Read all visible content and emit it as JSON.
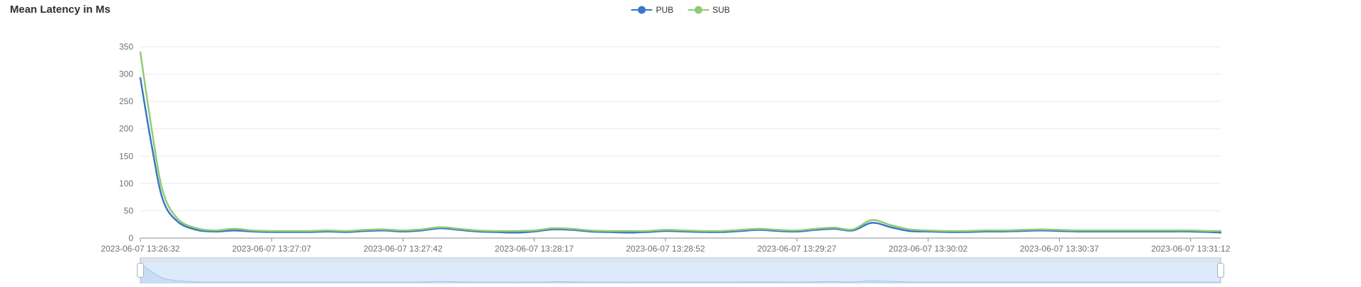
{
  "title": "Mean Latency in Ms",
  "legend": {
    "items": [
      {
        "label": "PUB",
        "color": "#3c76c6"
      },
      {
        "label": "SUB",
        "color": "#8ecb74"
      }
    ]
  },
  "chart_data": {
    "type": "line",
    "title": "Mean Latency in Ms",
    "xlabel": "",
    "ylabel": "",
    "x_axis": {
      "type": "time",
      "range_seconds": [
        0,
        288
      ],
      "tick_seconds": [
        0,
        35,
        70,
        105,
        140,
        175,
        210,
        245,
        280
      ],
      "tick_labels": [
        "2023-06-07 13:26:32",
        "2023-06-07 13:27:07",
        "2023-06-07 13:27:42",
        "2023-06-07 13:28:17",
        "2023-06-07 13:28:52",
        "2023-06-07 13:29:27",
        "2023-06-07 13:30:02",
        "2023-06-07 13:30:37",
        "2023-06-07 13:31:12"
      ]
    },
    "y_axis": {
      "ticks": [
        0,
        50,
        100,
        150,
        200,
        250,
        300,
        350
      ],
      "ylim": [
        0,
        350
      ],
      "grid": "horizontal-only"
    },
    "legend_position": "top-center",
    "series": [
      {
        "name": "PUB",
        "color": "#3c76c6",
        "points": [
          [
            0,
            293
          ],
          [
            3,
            170
          ],
          [
            6,
            70
          ],
          [
            10,
            30
          ],
          [
            15,
            15
          ],
          [
            20,
            12
          ],
          [
            25,
            14
          ],
          [
            30,
            12
          ],
          [
            35,
            11
          ],
          [
            40,
            11
          ],
          [
            45,
            11
          ],
          [
            50,
            12
          ],
          [
            55,
            11
          ],
          [
            60,
            13
          ],
          [
            65,
            14
          ],
          [
            70,
            12
          ],
          [
            75,
            14
          ],
          [
            80,
            18
          ],
          [
            85,
            15
          ],
          [
            90,
            12
          ],
          [
            95,
            11
          ],
          [
            100,
            10
          ],
          [
            105,
            12
          ],
          [
            110,
            16
          ],
          [
            115,
            15
          ],
          [
            120,
            12
          ],
          [
            125,
            11
          ],
          [
            130,
            10
          ],
          [
            135,
            11
          ],
          [
            140,
            13
          ],
          [
            145,
            12
          ],
          [
            150,
            11
          ],
          [
            155,
            11
          ],
          [
            160,
            13
          ],
          [
            165,
            15
          ],
          [
            170,
            13
          ],
          [
            175,
            12
          ],
          [
            180,
            15
          ],
          [
            185,
            17
          ],
          [
            190,
            14
          ],
          [
            195,
            28
          ],
          [
            200,
            20
          ],
          [
            205,
            13
          ],
          [
            210,
            12
          ],
          [
            215,
            11
          ],
          [
            220,
            11
          ],
          [
            225,
            12
          ],
          [
            230,
            12
          ],
          [
            235,
            13
          ],
          [
            240,
            14
          ],
          [
            245,
            13
          ],
          [
            250,
            12
          ],
          [
            255,
            12
          ],
          [
            260,
            12
          ],
          [
            265,
            12
          ],
          [
            270,
            12
          ],
          [
            275,
            12
          ],
          [
            280,
            12
          ],
          [
            285,
            11
          ],
          [
            288,
            10
          ]
        ]
      },
      {
        "name": "SUB",
        "color": "#8ecb74",
        "points": [
          [
            0,
            340
          ],
          [
            3,
            200
          ],
          [
            6,
            85
          ],
          [
            10,
            35
          ],
          [
            15,
            18
          ],
          [
            20,
            14
          ],
          [
            25,
            17
          ],
          [
            30,
            14
          ],
          [
            35,
            13
          ],
          [
            40,
            13
          ],
          [
            45,
            13
          ],
          [
            50,
            14
          ],
          [
            55,
            13
          ],
          [
            60,
            15
          ],
          [
            65,
            16
          ],
          [
            70,
            14
          ],
          [
            75,
            16
          ],
          [
            80,
            20
          ],
          [
            85,
            17
          ],
          [
            90,
            14
          ],
          [
            95,
            13
          ],
          [
            100,
            13
          ],
          [
            105,
            14
          ],
          [
            110,
            18
          ],
          [
            115,
            17
          ],
          [
            120,
            14
          ],
          [
            125,
            13
          ],
          [
            130,
            13
          ],
          [
            135,
            13
          ],
          [
            140,
            15
          ],
          [
            145,
            14
          ],
          [
            150,
            13
          ],
          [
            155,
            13
          ],
          [
            160,
            15
          ],
          [
            165,
            17
          ],
          [
            170,
            15
          ],
          [
            175,
            14
          ],
          [
            180,
            17
          ],
          [
            185,
            19
          ],
          [
            190,
            16
          ],
          [
            195,
            33
          ],
          [
            200,
            24
          ],
          [
            205,
            16
          ],
          [
            210,
            14
          ],
          [
            215,
            13
          ],
          [
            220,
            13
          ],
          [
            225,
            14
          ],
          [
            230,
            14
          ],
          [
            235,
            15
          ],
          [
            240,
            16
          ],
          [
            245,
            15
          ],
          [
            250,
            14
          ],
          [
            255,
            14
          ],
          [
            260,
            14
          ],
          [
            265,
            14
          ],
          [
            270,
            14
          ],
          [
            275,
            14
          ],
          [
            280,
            14
          ],
          [
            285,
            13
          ],
          [
            288,
            13
          ]
        ]
      }
    ],
    "datazoom": {
      "start_percent": 0,
      "end_percent": 100,
      "preview_series": "PUB"
    },
    "colors": {
      "grid_line": "#e4eaf2",
      "axis_line": "#878c96",
      "axis_label": "#6b7078",
      "slider_band_top": "#dde3ec",
      "slider_band_fill": "#ddeafb",
      "slider_area_fill": "#c9ddf6",
      "slider_area_line": "#a5c3ea",
      "slider_border": "#ccd6e4",
      "slider_handle_fill": "#ffffff",
      "slider_handle_stroke": "#aab2c0",
      "slider_handle_rail": "#b6bdc9"
    }
  }
}
